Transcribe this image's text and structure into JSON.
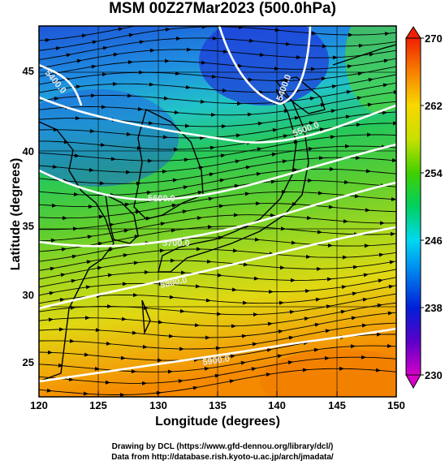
{
  "title": "MSM 00Z27Mar2023 (500.0hPa)",
  "x_axis": {
    "label": "Longitude (degrees)",
    "range": [
      120,
      150
    ],
    "ticks": [
      "120",
      "125",
      "130",
      "135",
      "140",
      "145",
      "150"
    ]
  },
  "y_axis": {
    "label": "Latitude  (degrees)",
    "range": [
      22.5,
      48
    ],
    "ticks": [
      "25",
      "30",
      "35",
      "40",
      "45"
    ]
  },
  "colorbar": {
    "range": [
      230,
      270
    ],
    "ticks": [
      "230",
      "238",
      "246",
      "254",
      "262",
      "270"
    ]
  },
  "contour_labels": [
    "5400.0",
    "5400.0",
    "5500.0",
    "5600.0",
    "5700.0",
    "5800.0",
    "5900.0"
  ],
  "credits": [
    "Drawing by DCL (https://www.gfd-dennou.org/library/dcl/)",
    "Data from http://database.rish.kyoto-u.ac.jp/arch/jmadata/"
  ]
}
